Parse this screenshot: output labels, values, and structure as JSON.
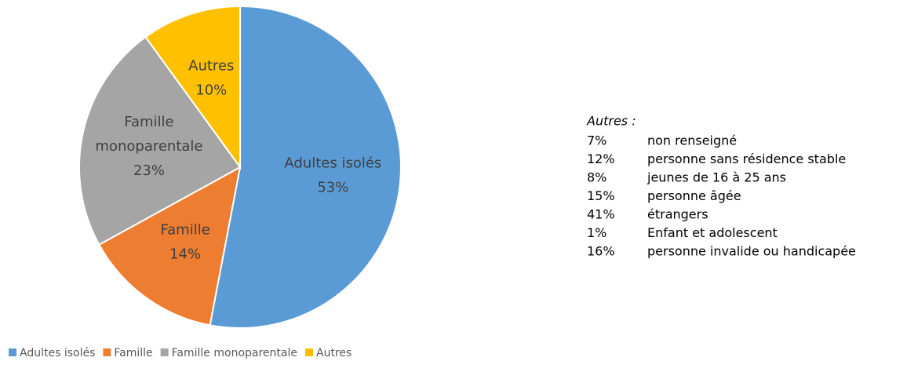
{
  "chart_data": {
    "type": "pie",
    "categories": [
      "Adultes isolés",
      "Famille",
      "Famille monoparentale",
      "Autres"
    ],
    "values": [
      53,
      14,
      23,
      10
    ],
    "value_labels": [
      "53%",
      "14%",
      "23%",
      "10%"
    ],
    "colors": [
      "#5b9bd5",
      "#ed7d31",
      "#a5a5a5",
      "#ffc000"
    ],
    "legend": "bottom"
  },
  "note": {
    "title": "Autres :",
    "items": [
      {
        "share": "7%",
        "text": "non renseigné"
      },
      {
        "share": "12%",
        "text": "personne sans résidence stable"
      },
      {
        "share": "8%",
        "text": "jeunes de 16 à 25 ans"
      },
      {
        "share": "15%",
        "text": "personne âgée"
      },
      {
        "share": "41%",
        "text": "étrangers"
      },
      {
        "share": "1%",
        "text": "Enfant et adolescent"
      },
      {
        "share": "16%",
        "text": "personne invalide ou handicapée"
      }
    ]
  }
}
